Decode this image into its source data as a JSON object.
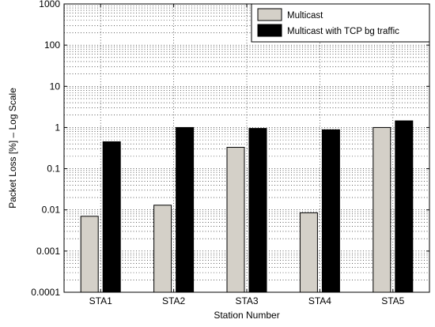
{
  "chart_data": {
    "type": "bar",
    "xlabel": "Station Number",
    "ylabel": "Packet Loss [%] – Log Scale",
    "yscale": "log",
    "ylim": [
      0.0001,
      1000
    ],
    "grid": true,
    "legend_position": "top-right",
    "categories": [
      "STA1",
      "STA2",
      "STA3",
      "STA4",
      "STA5"
    ],
    "y_ticks": [
      {
        "value": 0.0001,
        "label": "0.0001"
      },
      {
        "value": 0.001,
        "label": "0.001"
      },
      {
        "value": 0.01,
        "label": "0.01"
      },
      {
        "value": 0.1,
        "label": "0.1"
      },
      {
        "value": 1,
        "label": "1"
      },
      {
        "value": 10,
        "label": "10"
      },
      {
        "value": 100,
        "label": "100"
      },
      {
        "value": 1000,
        "label": "1000"
      }
    ],
    "series": [
      {
        "name": "Multicast",
        "color": "#d4d0c8",
        "values": [
          0.007,
          0.013,
          0.33,
          0.0085,
          1.0
        ]
      },
      {
        "name": "Multicast with TCP bg traffic",
        "color": "#000000",
        "values": [
          0.45,
          1.0,
          0.95,
          0.88,
          1.45
        ]
      }
    ]
  }
}
